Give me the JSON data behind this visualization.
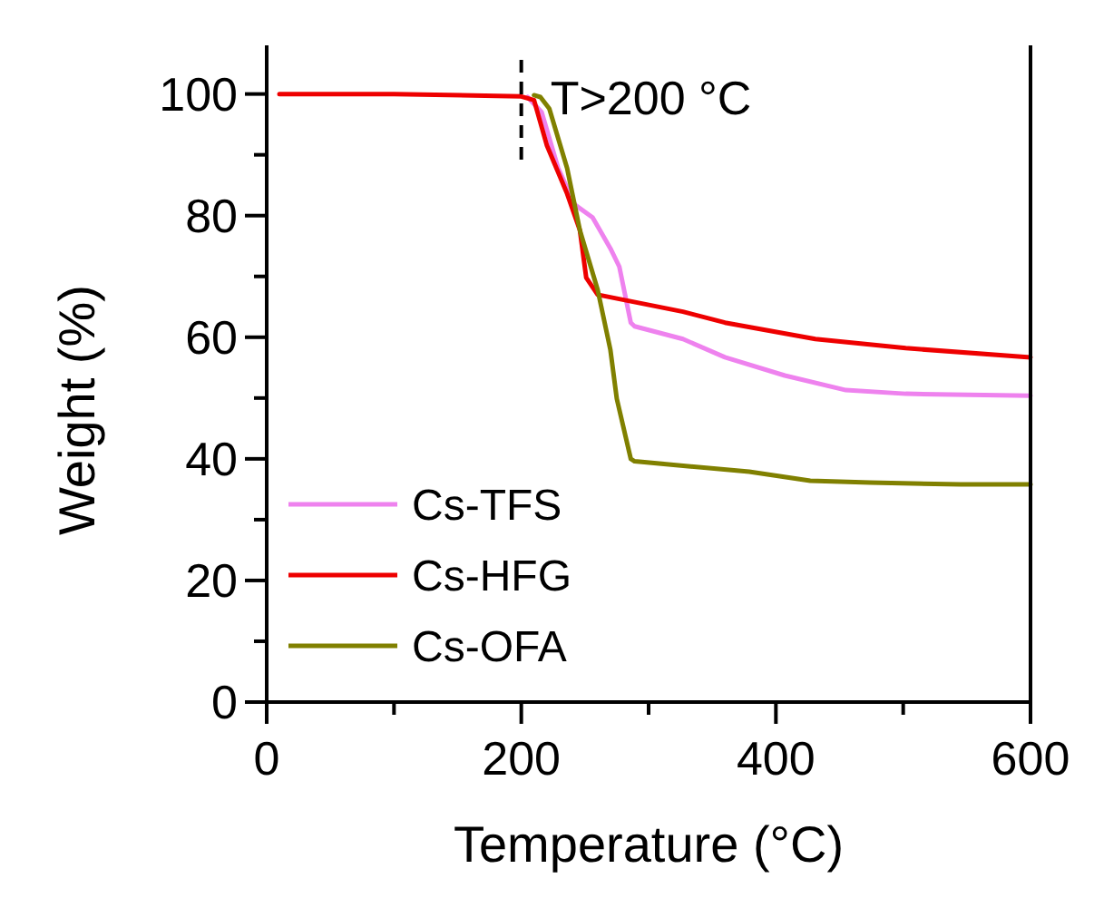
{
  "chart_data": {
    "type": "line",
    "xlabel": "Temperature (°C)",
    "ylabel": "Weight (%)",
    "xlim": [
      0,
      600
    ],
    "ylim": [
      0,
      108
    ],
    "xticks": [
      0,
      {
        "value": 100,
        "label": null
      },
      200,
      {
        "value": 300,
        "label": null
      },
      400,
      {
        "value": 500,
        "label": null
      },
      600
    ],
    "yticks": [
      0,
      {
        "value": 10,
        "label": null
      },
      20,
      {
        "value": 30,
        "label": null
      },
      40,
      {
        "value": 50,
        "label": null
      },
      60,
      {
        "value": 70,
        "label": null
      },
      80,
      {
        "value": 90,
        "label": null
      },
      100
    ],
    "grid": false,
    "legend": "bottom left",
    "line_style": "solid",
    "marker": "none",
    "ref_lines": [
      {
        "axis": "x",
        "value": 200,
        "label": "T>200 °C",
        "color": "#000000",
        "line_style": "dashed"
      }
    ],
    "series": [
      {
        "name": "Cs-TFS",
        "color": "#ee82ee",
        "x": [
          205,
          216,
          229,
          242,
          256,
          270,
          277,
          286,
          289,
          327,
          360,
          407,
          455,
          502,
          600
        ],
        "values": [
          99.5,
          97,
          87.8,
          81.8,
          79.7,
          74.6,
          71.6,
          62.4,
          61.8,
          59.7,
          56.7,
          53.7,
          51.3,
          50.7,
          50.4
        ]
      },
      {
        "name": "Cs-HFG",
        "color": "#ee0000",
        "x": [
          10,
          100,
          200,
          210,
          220,
          236,
          246,
          251,
          260,
          327,
          360,
          431,
          502,
          600
        ],
        "values": [
          100,
          100,
          99.6,
          99,
          91.6,
          83.6,
          77.6,
          69.8,
          67,
          64.2,
          62.4,
          59.7,
          58.2,
          56.7
        ]
      },
      {
        "name": "Cs-OFA",
        "color": "#808000",
        "x": [
          210,
          215,
          222,
          236,
          246,
          260,
          270,
          275,
          286,
          289,
          331,
          379,
          427,
          474,
          545,
          600
        ],
        "values": [
          99.8,
          99.5,
          97.6,
          87.8,
          77.6,
          67.8,
          57.9,
          49.9,
          40,
          39.6,
          38.8,
          37.9,
          36.4,
          36.1,
          35.8,
          35.8
        ]
      }
    ]
  }
}
